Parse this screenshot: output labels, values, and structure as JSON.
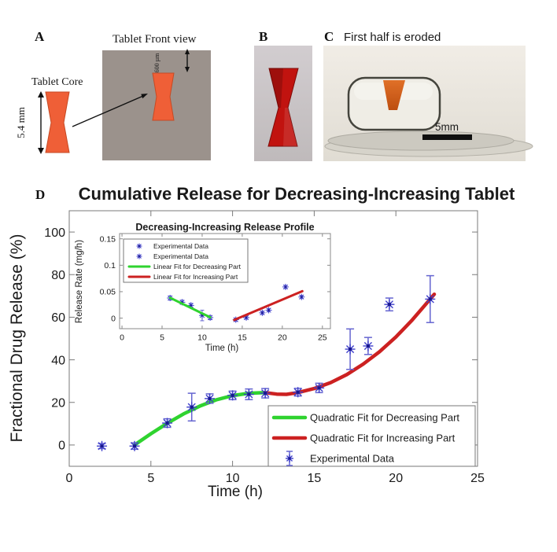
{
  "panelA": {
    "label": "A",
    "front_view_title": "Tablet Front view",
    "core_label": "Tablet Core",
    "core_height_label": "5.4 mm",
    "top_gap_label": "600 µm",
    "square_color": "#9b928c",
    "tablet_color": "#ef5f37"
  },
  "panelB": {
    "label": "B",
    "photo_bg": "#c9c4c7",
    "tablet_color": "#c1130f"
  },
  "panelC": {
    "label": "C",
    "title": "First half is eroded",
    "scale_bar_label": "5mm"
  },
  "panelD": {
    "label": "D"
  },
  "chart_data": [
    {
      "name": "main-chart",
      "type": "line+scatter",
      "title": "Cumulative Release for Decreasing-Increasing Tablet",
      "xlabel": "Time (h)",
      "ylabel": "Fractional Drug Release (%)",
      "xlim": [
        0,
        25
      ],
      "ylim": [
        -10,
        110
      ],
      "xticks": [
        0,
        5,
        10,
        15,
        20,
        25
      ],
      "yticks": [
        0,
        20,
        40,
        60,
        80,
        100
      ],
      "grid": false,
      "legend_position": "bottom-right",
      "point_format": "[time_h, fractional_release_pct, err]",
      "series": [
        {
          "name": "Quadratic Fit for Decreasing Part",
          "type": "line",
          "color": "#2fd32f",
          "width": 4.5,
          "points": [
            [
              4,
              0
            ],
            [
              5,
              5.3
            ],
            [
              6,
              10.2
            ],
            [
              7,
              14.6
            ],
            [
              8,
              18.3
            ],
            [
              9,
              21.2
            ],
            [
              10,
              23.2
            ],
            [
              11,
              24.3
            ],
            [
              12,
              24.6
            ]
          ]
        },
        {
          "name": "Quadratic Fit for Increasing Part",
          "type": "line",
          "color": "#cc2121",
          "width": 4.5,
          "points": [
            [
              12,
              24.6
            ],
            [
              12.7,
              23.9
            ],
            [
              13.3,
              23.8
            ],
            [
              14,
              24.6
            ],
            [
              15,
              26.5
            ],
            [
              16,
              29.3
            ],
            [
              17,
              33.1
            ],
            [
              18,
              38.0
            ],
            [
              19,
              43.8
            ],
            [
              20,
              50.7
            ],
            [
              21,
              58.7
            ],
            [
              22,
              67.6
            ],
            [
              22.35,
              70.8
            ]
          ]
        },
        {
          "name": "Experimental Data",
          "type": "scatter",
          "color": "#4040cc",
          "core_color": "#181890",
          "error_color": "#6464d0",
          "points": [
            [
              2,
              -0.5,
              1.2
            ],
            [
              4,
              -0.5,
              1.5
            ],
            [
              6,
              10.3,
              2
            ],
            [
              7.5,
              17.8,
              6.5
            ],
            [
              8.6,
              21.8,
              2.2
            ],
            [
              10,
              23.3,
              2
            ],
            [
              11,
              23.8,
              2.5
            ],
            [
              12,
              24.3,
              2.2
            ],
            [
              14,
              24.8,
              1.8
            ],
            [
              15.3,
              26.8,
              2.2
            ],
            [
              17.2,
              45,
              9.5
            ],
            [
              18.3,
              46.5,
              4
            ],
            [
              19.6,
              66,
              3
            ],
            [
              22.1,
              68.5,
              11
            ]
          ]
        }
      ]
    },
    {
      "name": "inset-chart",
      "type": "line+scatter",
      "title": "Decreasing-Increasing Release Profile",
      "xlabel": "Time (h)",
      "ylabel": "Release Rate (mg/h)",
      "xlim": [
        -0.3,
        26
      ],
      "ylim": [
        -0.02,
        0.16
      ],
      "xticks": [
        0,
        5,
        10,
        15,
        20,
        25
      ],
      "yticks": [
        0,
        0.05,
        0.1,
        0.15
      ],
      "grid": false,
      "legend_position": "top-left",
      "point_format": "[time_h, release_rate_mg_per_h, err]",
      "series": [
        {
          "name": "Experimental Data",
          "type": "scatter",
          "color": "#4040cc",
          "core_color": "#23239a",
          "error_color": "#6464d0",
          "points": [
            [
              6,
              0.038,
              0.004
            ],
            [
              7.5,
              0.03,
              0.004
            ],
            [
              8.6,
              0.024,
              0.004
            ],
            [
              10,
              0.005,
              0.01
            ],
            [
              11,
              0.001,
              0.004
            ]
          ]
        },
        {
          "name": "Experimental Data",
          "type": "scatter",
          "color": "#4040cc",
          "core_color": "#23239a",
          "error_color": "#6464d0",
          "points": [
            [
              14.2,
              -0.003,
              0.003
            ],
            [
              15.5,
              0.001,
              0.003
            ],
            [
              17.5,
              0.01,
              0.003
            ],
            [
              18.3,
              0.015,
              0.003
            ],
            [
              20.4,
              0.059,
              0.003
            ],
            [
              22.4,
              0.04,
              0.003
            ]
          ]
        },
        {
          "name": "Linear Fit for Decreasing Part",
          "type": "line",
          "color": "#2fd32f",
          "width": 3,
          "points": [
            [
              6,
              0.0385
            ],
            [
              11,
              0.0015
            ]
          ]
        },
        {
          "name": "Linear Fit for Increasing Part",
          "type": "line",
          "color": "#cc2121",
          "width": 3,
          "points": [
            [
              14,
              -0.0035
            ],
            [
              22.5,
              0.051
            ]
          ]
        }
      ]
    }
  ]
}
